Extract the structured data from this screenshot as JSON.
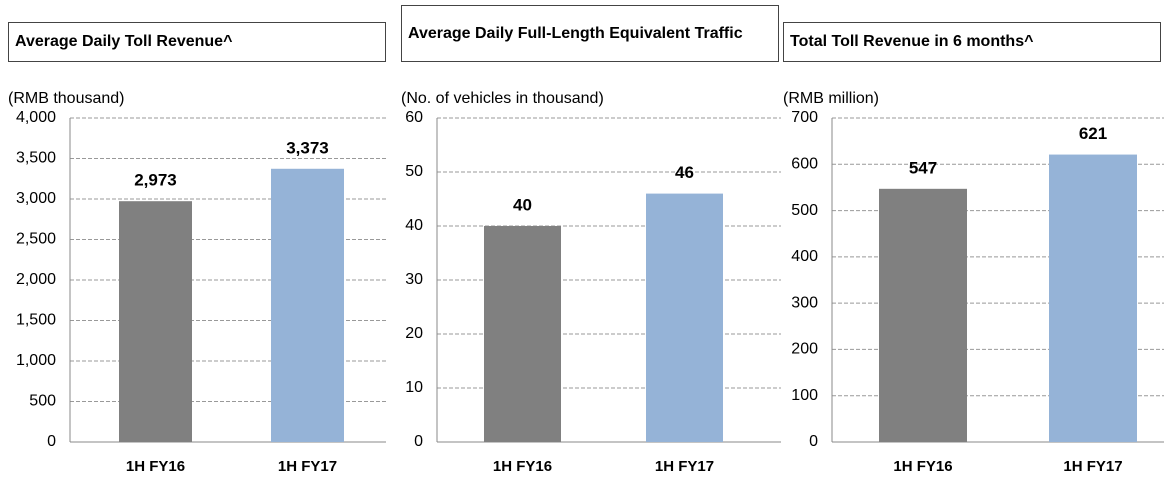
{
  "chart_data": [
    {
      "type": "bar",
      "title": "Average Daily Toll Revenue^",
      "y_label": "(RMB thousand)",
      "categories": [
        "1H FY16",
        "1H FY17"
      ],
      "values": [
        2973,
        3373
      ],
      "value_labels": [
        "2,973",
        "3,373"
      ],
      "colors": [
        "#808080",
        "#95b3d7"
      ],
      "ylim": [
        0,
        4000
      ],
      "yticks": [
        0,
        500,
        {
          "value": 1000,
          "label": "1,000"
        },
        {
          "value": 1500,
          "label": "1,500"
        },
        {
          "value": 2000,
          "label": "2,000"
        },
        {
          "value": 2500,
          "label": "2,500"
        },
        {
          "value": 3000,
          "label": "3,000"
        },
        {
          "value": 3500,
          "label": "3,500"
        },
        {
          "value": 4000,
          "label": "4,000"
        }
      ],
      "grid": true
    },
    {
      "type": "bar",
      "title": "Average Daily Full-Length Equivalent Traffic",
      "y_label": "(No. of vehicles in thousand)",
      "categories": [
        "1H FY16",
        "1H FY17"
      ],
      "values": [
        40,
        46
      ],
      "colors": [
        "#808080",
        "#95b3d7"
      ],
      "ylim": [
        0,
        60
      ],
      "yticks": [
        0,
        10,
        20,
        30,
        40,
        50,
        60
      ],
      "grid": true
    },
    {
      "type": "bar",
      "title": "Total Toll Revenue in 6 months^",
      "y_label": "(RMB million)",
      "categories": [
        "1H FY16",
        "1H FY17"
      ],
      "values": [
        547,
        621
      ],
      "colors": [
        "#808080",
        "#95b3d7"
      ],
      "ylim": [
        0,
        700
      ],
      "yticks": [
        0,
        100,
        200,
        300,
        400,
        500,
        600,
        700
      ],
      "grid": true
    }
  ]
}
